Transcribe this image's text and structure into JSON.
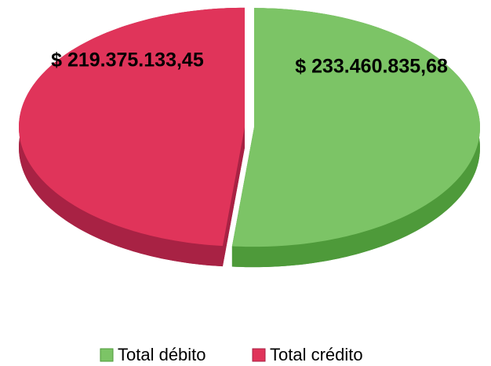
{
  "chart_data": {
    "type": "pie",
    "categories": [
      "Total débito",
      "Total crédito"
    ],
    "values": [
      233460835.68,
      219375133.45
    ],
    "value_labels": [
      "$ 233.460.835,68",
      "$ 219.375.133,45"
    ],
    "colors": [
      "#7cc466",
      "#e0345a"
    ],
    "side_colors": [
      "#4e9a3a",
      "#a82244"
    ],
    "legend": "bottom"
  }
}
